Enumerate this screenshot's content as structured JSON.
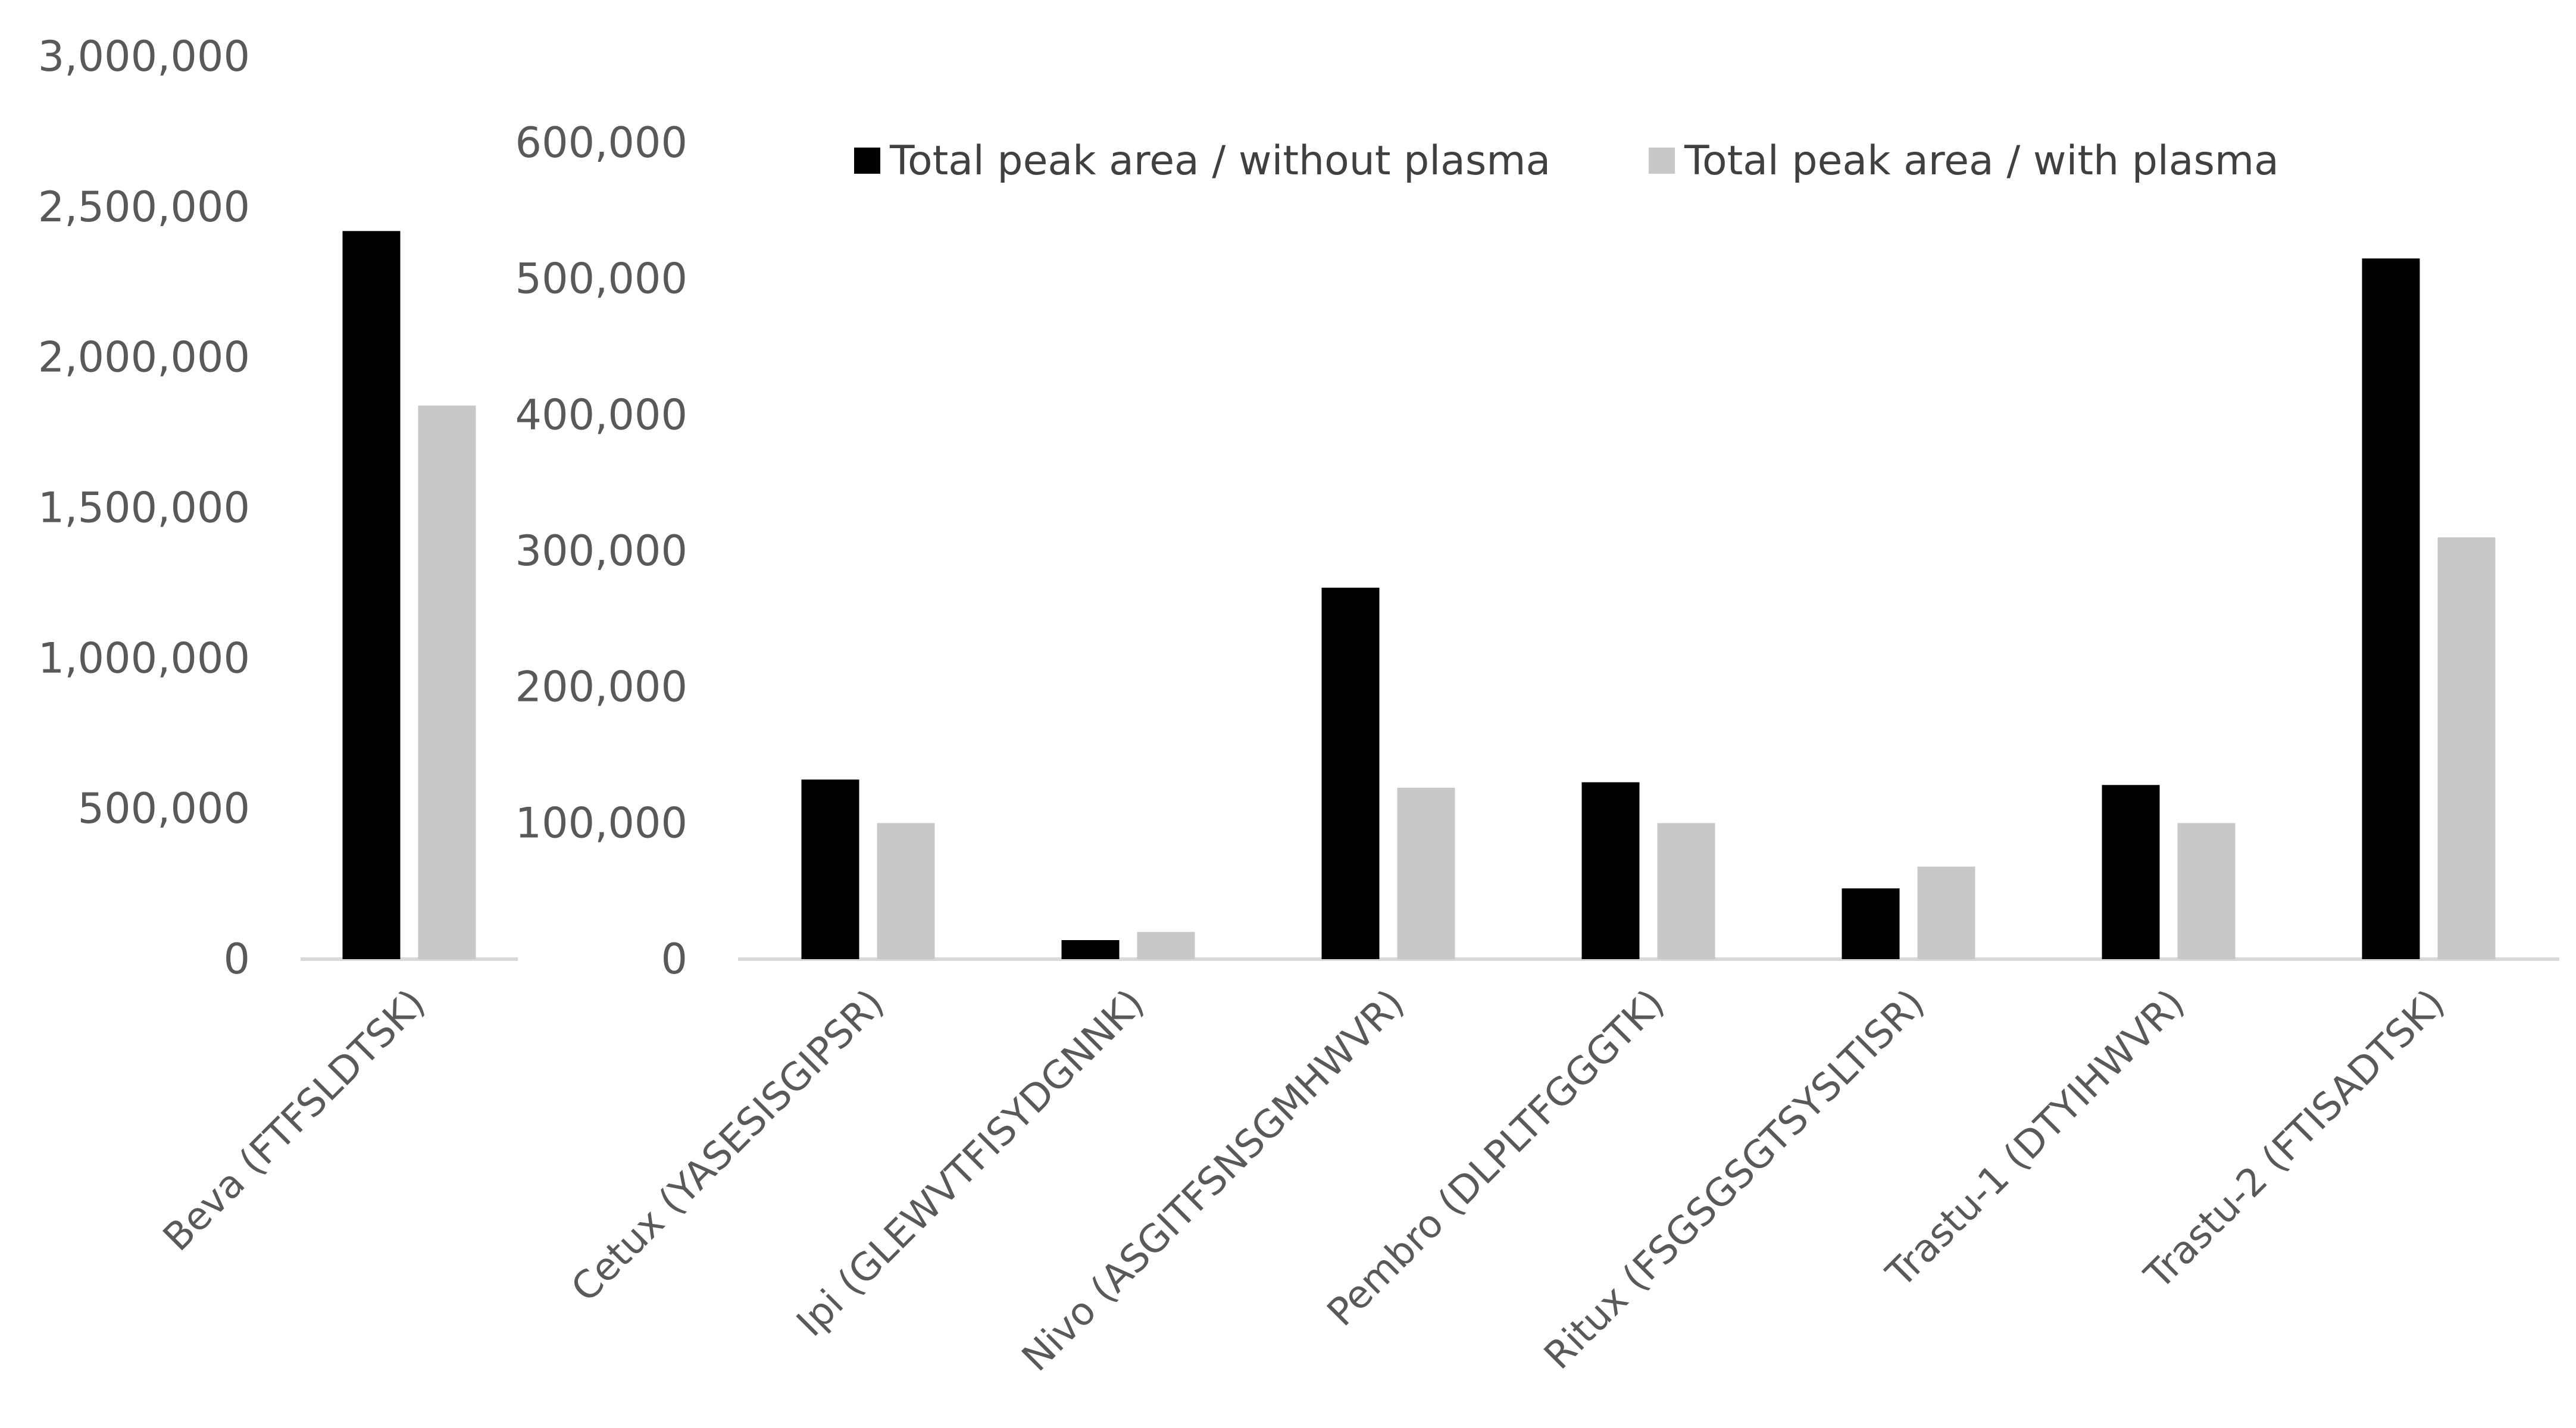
{
  "chart_data": [
    {
      "type": "bar",
      "categories": [
        "Beva (FTFSLDTSK)"
      ],
      "series": [
        {
          "name": "Total peak area / without plasma",
          "values": [
            2420000
          ]
        },
        {
          "name": "Total peak area / with plasma",
          "values": [
            1840000
          ]
        }
      ],
      "y_ticks": [
        "0",
        "500,000",
        "1,000,000",
        "1,500,000",
        "2,000,000",
        "2,500,000",
        "3,000,000"
      ],
      "ylim": [
        0,
        3000000
      ],
      "grid": false
    },
    {
      "type": "bar",
      "categories": [
        "Cetux (YASESISGIPSR)",
        "Ipi (GLEWVTFISYDGNNK)",
        "Nivo (ASGITFSNSGMHWVR)",
        "Pembro (DLPLTFGGGTK)",
        "Ritux (FSGSGSGTSYSLTISR)",
        "Trastu-1 (DTYIHWVR)",
        "Trastu-2 (FTISADTSK)"
      ],
      "series": [
        {
          "name": "Total peak area / without plasma",
          "values": [
            132000,
            14000,
            273000,
            130000,
            52000,
            128000,
            515000
          ]
        },
        {
          "name": "Total peak area / with plasma",
          "values": [
            100000,
            20000,
            126000,
            100000,
            68000,
            100000,
            310000
          ]
        }
      ],
      "y_ticks": [
        "0",
        "100,000",
        "200,000",
        "300,000",
        "400,000",
        "500,000",
        "600,000"
      ],
      "ylim": [
        0,
        600000
      ],
      "grid": false,
      "legend_position": "top"
    }
  ],
  "colors": {
    "without_plasma": "#000000",
    "with_plasma": "#c8c8c8",
    "axis": "#d9d9d9",
    "text": "#595959"
  }
}
